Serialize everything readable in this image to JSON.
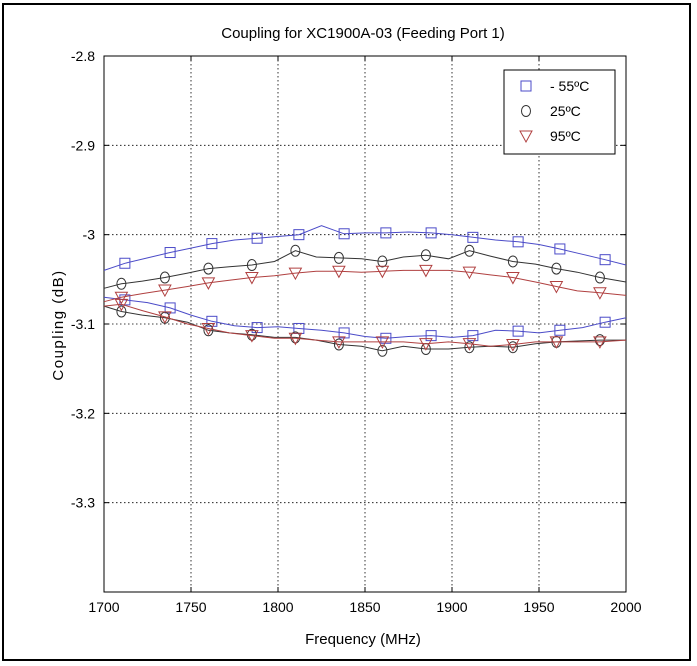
{
  "chart_data": {
    "type": "line",
    "title": "Coupling for XC1900A-03 (Feeding Port 1)",
    "xlabel": "Frequency (MHz)",
    "ylabel": "Coupling (dB)",
    "xlim": [
      1700,
      2000
    ],
    "ylim": [
      -3.4,
      -2.8
    ],
    "xticks": [
      1700,
      1750,
      1800,
      1850,
      1900,
      1950,
      2000
    ],
    "yticks": [
      -2.8,
      -2.9,
      -3,
      -3.1,
      -3.2,
      -3.3
    ],
    "xtick_labels": [
      "1700",
      "1750",
      "1800",
      "1850",
      "1900",
      "1950",
      "2000"
    ],
    "ytick_labels": [
      "-2.8",
      "-2.9",
      "-3",
      "-3.1",
      "-3.2",
      "-3.3"
    ],
    "grid": true,
    "legend_position": "top-right",
    "series": [
      {
        "name": "- 55ºC",
        "marker": "square",
        "color": "#4b4bc8",
        "upper": {
          "x": [
            1700,
            1712,
            1725,
            1738,
            1750,
            1762,
            1775,
            1788,
            1800,
            1812,
            1825,
            1838,
            1850,
            1862,
            1875,
            1888,
            1900,
            1912,
            1925,
            1938,
            1950,
            1962,
            1975,
            1988,
            2000
          ],
          "y": [
            -3.04,
            -3.032,
            -3.026,
            -3.02,
            -3.015,
            -3.01,
            -3.006,
            -3.004,
            -3.002,
            -3.0,
            -2.99,
            -2.999,
            -2.998,
            -2.998,
            -2.997,
            -2.998,
            -3.0,
            -3.003,
            -3.006,
            -3.008,
            -3.011,
            -3.016,
            -3.022,
            -3.028,
            -3.034
          ]
        },
        "lower": {
          "x": [
            1700,
            1712,
            1725,
            1738,
            1750,
            1762,
            1775,
            1788,
            1800,
            1812,
            1825,
            1838,
            1850,
            1862,
            1875,
            1888,
            1900,
            1912,
            1925,
            1938,
            1950,
            1962,
            1975,
            1988,
            2000
          ],
          "y": [
            -3.07,
            -3.073,
            -3.076,
            -3.082,
            -3.09,
            -3.097,
            -3.102,
            -3.104,
            -3.103,
            -3.105,
            -3.107,
            -3.11,
            -3.114,
            -3.116,
            -3.114,
            -3.113,
            -3.115,
            -3.113,
            -3.107,
            -3.108,
            -3.11,
            -3.107,
            -3.104,
            -3.098,
            -3.093
          ]
        }
      },
      {
        "name": "25ºC",
        "marker": "circle",
        "color": "#333333",
        "upper": {
          "x": [
            1700,
            1710,
            1722,
            1735,
            1748,
            1760,
            1772,
            1785,
            1798,
            1810,
            1822,
            1835,
            1848,
            1860,
            1872,
            1885,
            1898,
            1910,
            1922,
            1935,
            1948,
            1960,
            1972,
            1985,
            2000
          ],
          "y": [
            -3.06,
            -3.055,
            -3.052,
            -3.048,
            -3.043,
            -3.038,
            -3.036,
            -3.034,
            -3.03,
            -3.018,
            -3.025,
            -3.026,
            -3.027,
            -3.03,
            -3.025,
            -3.023,
            -3.027,
            -3.018,
            -3.024,
            -3.03,
            -3.033,
            -3.038,
            -3.042,
            -3.048,
            -3.053
          ]
        },
        "lower": {
          "x": [
            1700,
            1710,
            1722,
            1735,
            1748,
            1760,
            1772,
            1785,
            1798,
            1810,
            1822,
            1835,
            1848,
            1860,
            1872,
            1885,
            1898,
            1910,
            1922,
            1935,
            1948,
            1960,
            1972,
            1985,
            2000
          ],
          "y": [
            -3.08,
            -3.086,
            -3.09,
            -3.093,
            -3.098,
            -3.107,
            -3.11,
            -3.112,
            -3.115,
            -3.115,
            -3.118,
            -3.123,
            -3.125,
            -3.13,
            -3.125,
            -3.128,
            -3.128,
            -3.126,
            -3.125,
            -3.126,
            -3.122,
            -3.12,
            -3.119,
            -3.118,
            -3.118
          ]
        }
      },
      {
        "name": "95ºC",
        "marker": "triangle",
        "color": "#b04040",
        "upper": {
          "x": [
            1700,
            1710,
            1722,
            1735,
            1748,
            1760,
            1772,
            1785,
            1798,
            1810,
            1822,
            1835,
            1848,
            1860,
            1872,
            1885,
            1898,
            1910,
            1922,
            1935,
            1948,
            1960,
            1972,
            1985,
            2000
          ],
          "y": [
            -3.075,
            -3.07,
            -3.066,
            -3.062,
            -3.058,
            -3.054,
            -3.051,
            -3.048,
            -3.046,
            -3.043,
            -3.041,
            -3.041,
            -3.042,
            -3.041,
            -3.04,
            -3.04,
            -3.04,
            -3.042,
            -3.045,
            -3.048,
            -3.053,
            -3.058,
            -3.063,
            -3.065,
            -3.068
          ]
        },
        "lower": {
          "x": [
            1700,
            1710,
            1722,
            1735,
            1748,
            1760,
            1772,
            1785,
            1798,
            1810,
            1822,
            1835,
            1848,
            1860,
            1872,
            1885,
            1898,
            1910,
            1922,
            1935,
            1948,
            1960,
            1972,
            1985,
            2000
          ],
          "y": [
            -3.08,
            -3.078,
            -3.085,
            -3.092,
            -3.1,
            -3.105,
            -3.11,
            -3.113,
            -3.116,
            -3.116,
            -3.118,
            -3.12,
            -3.12,
            -3.12,
            -3.12,
            -3.122,
            -3.12,
            -3.122,
            -3.125,
            -3.123,
            -3.12,
            -3.12,
            -3.12,
            -3.12,
            -3.118
          ]
        }
      }
    ]
  }
}
